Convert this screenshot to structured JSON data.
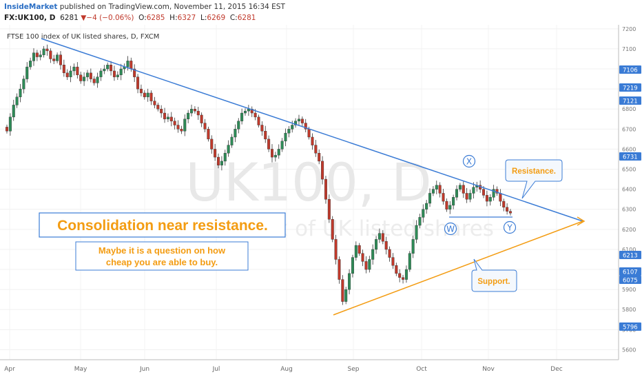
{
  "header": {
    "publisher": "InsideMarket",
    "published_text": "published on TradingView.com, November 11, 2015 16:34 EST",
    "symbol": "FX:UK100, D",
    "last": "6281",
    "change_arrow": "▼",
    "change": "−4 (−0.06%)",
    "o_label": "O:",
    "o_value": "6285",
    "h_label": "H:",
    "h_value": "6327",
    "l_label": "L:",
    "l_value": "6269",
    "c_label": "C:",
    "c_value": "6281"
  },
  "chart_data": {
    "type": "candlestick",
    "symbol_label": "FTSE 100 index of UK listed shares, D, FXCM",
    "watermark_main": "UK100, D",
    "watermark_sub": "FTSE 100 index of UK listed shares",
    "y_ticks": [
      5600,
      5700,
      5800,
      5900,
      6000,
      6100,
      6200,
      6300,
      6400,
      6500,
      6600,
      6700,
      6800,
      6900,
      7000,
      7100,
      7200
    ],
    "ylim": [
      5550,
      7220
    ],
    "x_labels": [
      "Apr",
      "May",
      "Jun",
      "Jul",
      "Aug",
      "Sep",
      "Oct",
      "Nov",
      "Dec"
    ],
    "price_badges": [
      "7106",
      "7219",
      "7121",
      "6731",
      "6213",
      "6107",
      "6075",
      "5796"
    ],
    "colors": {
      "up": "#2e8b57",
      "down": "#c0392b",
      "resistance": "#3a7bd5",
      "support": "#f39c12",
      "annotation": "#f39c12"
    },
    "annotations": {
      "headline": "Consolidation near resistance.",
      "subtext_line1": "Maybe it is a question on how",
      "subtext_line2": "cheap you are able to buy.",
      "resistance_label": "Resistance.",
      "support_label": "Support.",
      "wave_x": "X",
      "wave_w": "W",
      "wave_y": "Y"
    },
    "closes": [
      6690,
      6760,
      6820,
      6860,
      6900,
      6950,
      7010,
      7040,
      7080,
      7060,
      7070,
      7100,
      7090,
      7050,
      7040,
      7070,
      7020,
      6980,
      6960,
      6990,
      7010,
      6970,
      6940,
      6960,
      6980,
      6950,
      6930,
      6960,
      6990,
      7000,
      7020,
      6990,
      6960,
      6970,
      7000,
      7010,
      7040,
      7000,
      6960,
      6900,
      6880,
      6860,
      6880,
      6840,
      6820,
      6800,
      6780,
      6750,
      6760,
      6740,
      6720,
      6700,
      6690,
      6750,
      6780,
      6800,
      6790,
      6770,
      6730,
      6700,
      6650,
      6600,
      6560,
      6520,
      6540,
      6580,
      6620,
      6660,
      6700,
      6740,
      6780,
      6790,
      6800,
      6780,
      6760,
      6720,
      6690,
      6650,
      6600,
      6560,
      6570,
      6600,
      6640,
      6680,
      6700,
      6720,
      6740,
      6750,
      6730,
      6700,
      6660,
      6620,
      6580,
      6540,
      6450,
      6350,
      6250,
      6150,
      6050,
      5950,
      5840,
      5900,
      5980,
      6060,
      6120,
      6080,
      6040,
      6000,
      6050,
      6100,
      6150,
      6180,
      6140,
      6100,
      6060,
      6020,
      5980,
      5960,
      5950,
      6000,
      6080,
      6150,
      6220,
      6260,
      6300,
      6330,
      6380,
      6400,
      6420,
      6380,
      6340,
      6300,
      6320,
      6360,
      6400,
      6420,
      6380,
      6350,
      6380,
      6410,
      6420,
      6400,
      6370,
      6340,
      6360,
      6400,
      6380,
      6340,
      6310,
      6290,
      6281
    ]
  }
}
